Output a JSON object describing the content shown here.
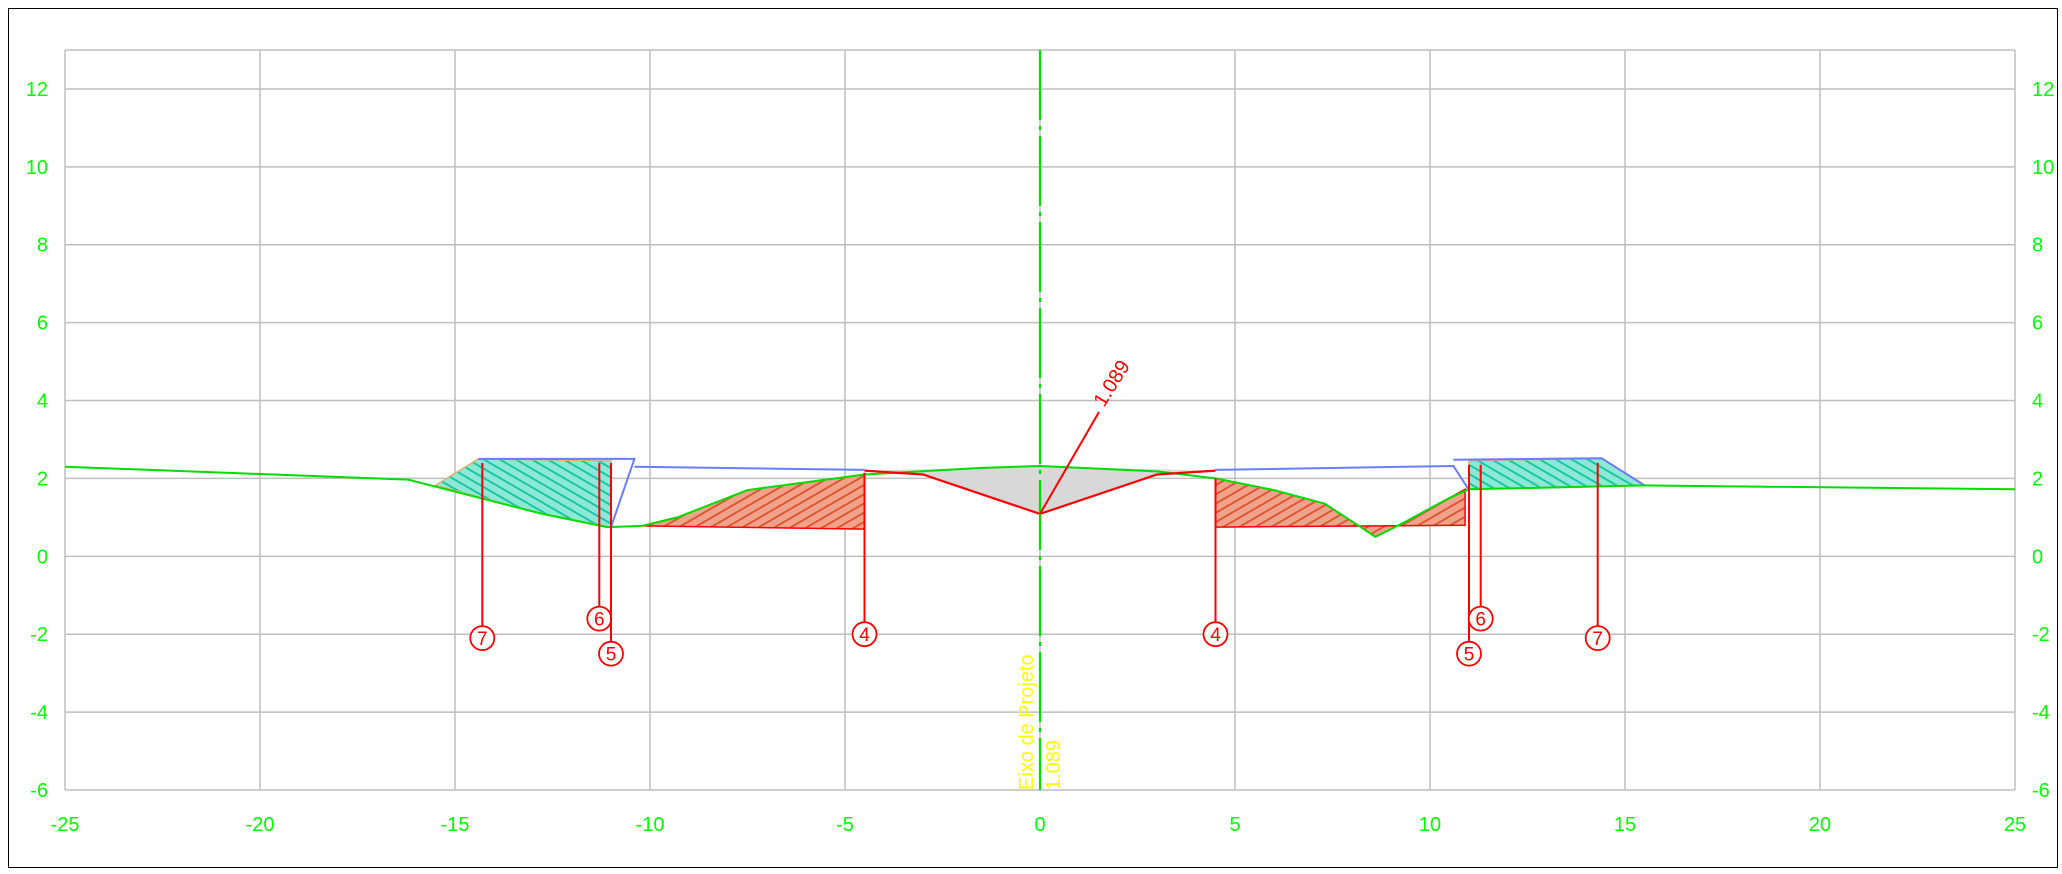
{
  "chart_data": {
    "type": "scatter",
    "xlim": [
      -25,
      25
    ],
    "ylim": [
      -6,
      13
    ],
    "x_ticks": [
      -25,
      -20,
      -15,
      -10,
      -5,
      0,
      5,
      10,
      15,
      20,
      25
    ],
    "y_ticks": [
      -6,
      -4,
      -2,
      0,
      2,
      4,
      6,
      8,
      10,
      12
    ],
    "grid": true,
    "colors": {
      "terrain": "#00dd00",
      "design": "#ff0000",
      "reference": "#6a7cff",
      "fill_earth": "#2fd9b8",
      "cut_earth": "#e56a4c",
      "pavement": "#d8d8d8",
      "axis_text": "#ffff00",
      "tick_text": "#00ff00"
    },
    "terrain_line": [
      [
        -25,
        2.3
      ],
      [
        -16.2,
        1.97
      ],
      [
        -12.8,
        1.1
      ],
      [
        -11.1,
        0.75
      ],
      [
        -10.2,
        0.78
      ],
      [
        -9.3,
        1.0
      ],
      [
        -7.5,
        1.7
      ],
      [
        -4.5,
        2.1
      ],
      [
        -1.5,
        2.27
      ],
      [
        0,
        2.32
      ],
      [
        3.0,
        2.18
      ],
      [
        4.5,
        2.0
      ],
      [
        6.0,
        1.7
      ],
      [
        7.3,
        1.35
      ],
      [
        8.15,
        0.8
      ],
      [
        8.6,
        0.5
      ],
      [
        9.3,
        0.85
      ],
      [
        10.5,
        1.5
      ],
      [
        11.0,
        1.72
      ],
      [
        15.5,
        1.82
      ],
      [
        25,
        1.72
      ]
    ],
    "design_line": [
      [
        -4.5,
        2.2
      ],
      [
        -3.0,
        2.1
      ],
      [
        0,
        1.089
      ],
      [
        3.0,
        2.1
      ],
      [
        4.5,
        2.2
      ]
    ],
    "reference_lines": [
      [
        [
          -14.4,
          2.5
        ],
        [
          -10.4,
          2.5
        ],
        [
          -11.0,
          0.75
        ]
      ],
      [
        [
          -10.4,
          2.3
        ],
        [
          -4.5,
          2.22
        ]
      ],
      [
        [
          4.5,
          2.22
        ],
        [
          10.6,
          2.32
        ],
        [
          11.0,
          1.7
        ]
      ],
      [
        [
          10.6,
          2.48
        ],
        [
          14.4,
          2.52
        ],
        [
          15.5,
          1.82
        ]
      ]
    ],
    "stations": [
      {
        "label": "7",
        "x": -14.3,
        "top": 2.4,
        "bottom": -2.1
      },
      {
        "label": "6",
        "x": -11.3,
        "top": 2.4,
        "bottom": -1.6
      },
      {
        "label": "5",
        "x": -11.0,
        "top": 2.4,
        "bottom": -2.5
      },
      {
        "label": "4",
        "x": -4.5,
        "top": 2.15,
        "bottom": -2.0
      },
      {
        "label": "4",
        "x": 4.5,
        "top": 2.0,
        "bottom": -2.0
      },
      {
        "label": "5",
        "x": 11.0,
        "top": 2.35,
        "bottom": -2.5
      },
      {
        "label": "6",
        "x": 11.3,
        "top": 2.35,
        "bottom": -1.6
      },
      {
        "label": "7",
        "x": 14.3,
        "top": 2.4,
        "bottom": -2.1
      }
    ],
    "annotations": {
      "center_elevation": "1.089",
      "axis_label": "Eixo de Projeto",
      "axis_value": "1.089"
    },
    "regions": {
      "fill_left": [
        [
          -15.5,
          1.82
        ],
        [
          -14.4,
          2.5
        ],
        [
          -11.0,
          2.45
        ],
        [
          -11.0,
          0.75
        ],
        [
          -12.8,
          1.1
        ]
      ],
      "fill_right": [
        [
          11.0,
          1.72
        ],
        [
          11.0,
          2.45
        ],
        [
          14.4,
          2.52
        ],
        [
          15.5,
          1.82
        ]
      ],
      "cut_left": [
        [
          -10.2,
          0.78
        ],
        [
          -4.5,
          0.7
        ],
        [
          -4.5,
          2.1
        ],
        [
          -7.5,
          1.7
        ],
        [
          -9.3,
          1.0
        ]
      ],
      "cut_right": [
        [
          4.5,
          0.75
        ],
        [
          10.9,
          0.8
        ],
        [
          10.9,
          1.72
        ],
        [
          10.5,
          1.5
        ],
        [
          9.3,
          0.85
        ],
        [
          8.6,
          0.5
        ],
        [
          8.15,
          0.8
        ],
        [
          7.3,
          1.35
        ],
        [
          6.0,
          1.7
        ],
        [
          4.5,
          2.0
        ]
      ],
      "pavement": [
        [
          -4.5,
          2.2
        ],
        [
          -3.0,
          2.1
        ],
        [
          0,
          1.089
        ],
        [
          3.0,
          2.1
        ],
        [
          4.5,
          2.2
        ],
        [
          0,
          2.3
        ]
      ]
    }
  }
}
